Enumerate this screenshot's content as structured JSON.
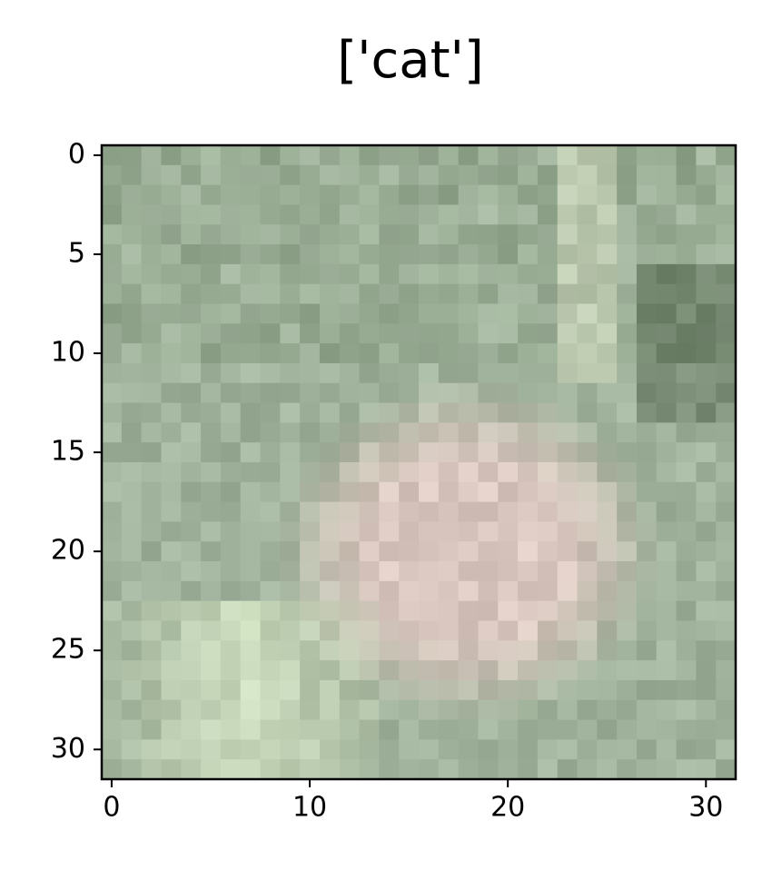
{
  "chart_data": {
    "type": "image",
    "title": "['cat']",
    "xlim": [
      -0.5,
      31.5
    ],
    "ylim": [
      31.5,
      -0.5
    ],
    "xticks": [
      0,
      10,
      20,
      30
    ],
    "yticks": [
      0,
      5,
      10,
      15,
      20,
      25,
      30
    ]
  }
}
